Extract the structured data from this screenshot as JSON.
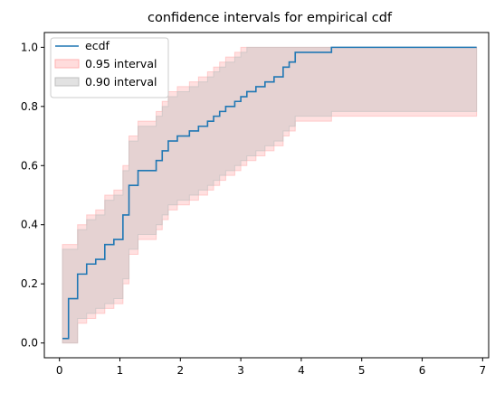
{
  "chart_data": {
    "type": "line",
    "title": "confidence intervals for empirical cdf",
    "xlabel": "",
    "ylabel": "",
    "xlim": [
      -0.25,
      7.1
    ],
    "ylim": [
      -0.05,
      1.05
    ],
    "x_ticks": [
      0,
      1,
      2,
      3,
      4,
      5,
      6,
      7
    ],
    "y_ticks": [
      0.0,
      0.2,
      0.4,
      0.6,
      0.8,
      1.0
    ],
    "x_tick_labels": [
      "0",
      "1",
      "2",
      "3",
      "4",
      "5",
      "6",
      "7"
    ],
    "y_tick_labels": [
      "0.0",
      "0.2",
      "0.4",
      "0.6",
      "0.8",
      "1.0"
    ],
    "grid": false,
    "legend_position": "top-left",
    "colors": {
      "ecdf": "#1f77b4",
      "interval_95": "#ffb2b2",
      "interval_90": "#bfbfbf"
    },
    "series": [
      {
        "name": "ecdf",
        "kind": "step",
        "x": [
          0.05,
          0.15,
          0.3,
          0.45,
          0.6,
          0.75,
          0.9,
          1.05,
          1.15,
          1.3,
          1.6,
          1.7,
          1.8,
          1.95,
          2.15,
          2.3,
          2.45,
          2.55,
          2.65,
          2.75,
          2.9,
          3.0,
          3.1,
          3.25,
          3.4,
          3.55,
          3.7,
          3.8,
          3.9,
          4.5,
          6.75,
          6.9
        ],
        "y": [
          0.015,
          0.15,
          0.233,
          0.267,
          0.283,
          0.333,
          0.35,
          0.433,
          0.533,
          0.583,
          0.617,
          0.65,
          0.683,
          0.7,
          0.717,
          0.733,
          0.75,
          0.767,
          0.783,
          0.8,
          0.817,
          0.833,
          0.85,
          0.867,
          0.883,
          0.9,
          0.933,
          0.95,
          0.983,
          1.0,
          1.0,
          1.0
        ]
      },
      {
        "name": "0.95 interval",
        "kind": "band",
        "x": [
          0.05,
          0.15,
          0.3,
          0.45,
          0.6,
          0.75,
          0.9,
          1.05,
          1.15,
          1.3,
          1.6,
          1.7,
          1.8,
          1.95,
          2.15,
          2.3,
          2.45,
          2.55,
          2.65,
          2.75,
          2.9,
          3.0,
          3.1,
          3.25,
          3.4,
          3.55,
          3.7,
          3.8,
          3.9,
          4.5,
          6.75,
          6.9
        ],
        "lower": [
          0.0,
          0.0,
          0.067,
          0.083,
          0.1,
          0.117,
          0.133,
          0.2,
          0.3,
          0.35,
          0.383,
          0.417,
          0.45,
          0.467,
          0.483,
          0.5,
          0.517,
          0.533,
          0.55,
          0.567,
          0.583,
          0.6,
          0.617,
          0.633,
          0.65,
          0.667,
          0.7,
          0.717,
          0.75,
          0.767,
          0.767,
          0.767
        ],
        "upper": [
          0.333,
          0.333,
          0.4,
          0.433,
          0.45,
          0.5,
          0.517,
          0.6,
          0.7,
          0.75,
          0.783,
          0.817,
          0.85,
          0.867,
          0.883,
          0.9,
          0.917,
          0.933,
          0.95,
          0.967,
          0.983,
          1.0,
          1.0,
          1.0,
          1.0,
          1.0,
          1.0,
          1.0,
          1.0,
          1.0,
          1.0,
          1.0
        ]
      },
      {
        "name": "0.90 interval",
        "kind": "band",
        "x": [
          0.05,
          0.15,
          0.3,
          0.45,
          0.6,
          0.75,
          0.9,
          1.05,
          1.15,
          1.3,
          1.6,
          1.7,
          1.8,
          1.95,
          2.15,
          2.3,
          2.45,
          2.55,
          2.65,
          2.75,
          2.9,
          3.0,
          3.1,
          3.25,
          3.4,
          3.55,
          3.7,
          3.8,
          3.9,
          4.5,
          6.75,
          6.9
        ],
        "lower": [
          0.0,
          0.0,
          0.083,
          0.1,
          0.117,
          0.133,
          0.15,
          0.217,
          0.317,
          0.367,
          0.4,
          0.433,
          0.467,
          0.483,
          0.5,
          0.517,
          0.533,
          0.55,
          0.567,
          0.583,
          0.6,
          0.617,
          0.633,
          0.65,
          0.667,
          0.683,
          0.717,
          0.733,
          0.767,
          0.783,
          0.783,
          0.783
        ],
        "upper": [
          0.317,
          0.317,
          0.383,
          0.417,
          0.433,
          0.483,
          0.5,
          0.583,
          0.683,
          0.733,
          0.767,
          0.8,
          0.833,
          0.85,
          0.867,
          0.883,
          0.9,
          0.917,
          0.933,
          0.95,
          0.967,
          0.983,
          1.0,
          1.0,
          1.0,
          1.0,
          1.0,
          1.0,
          1.0,
          1.0,
          1.0,
          1.0
        ]
      }
    ]
  }
}
